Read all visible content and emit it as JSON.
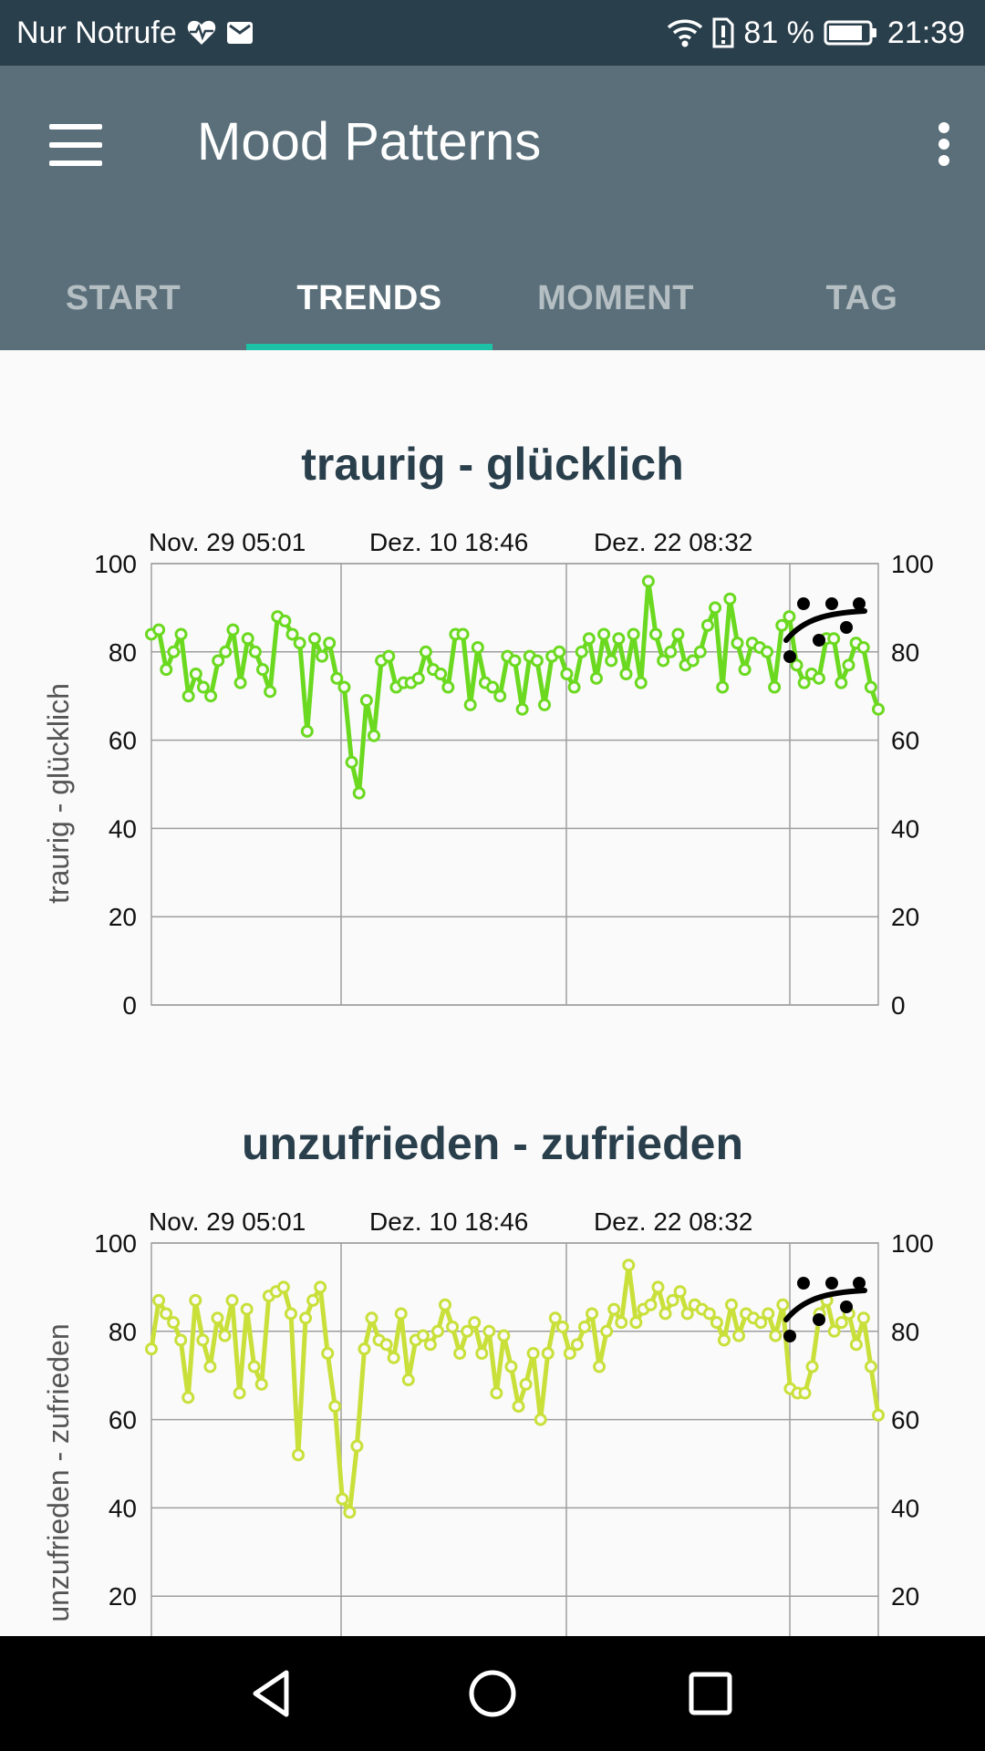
{
  "status_bar": {
    "carrier": "Nur Notrufe",
    "battery_percent": "81 %",
    "time": "21:39",
    "icons": [
      "heart-pulse-icon",
      "mail-icon",
      "wifi-icon",
      "sim-alert-icon",
      "battery-icon"
    ]
  },
  "app_bar": {
    "title": "Mood Patterns",
    "menu_icon": "hamburger-menu-icon",
    "overflow_icon": "more-vert-icon",
    "colors": {
      "background": "#5a6f79",
      "status_bar": "#2a3f4c",
      "tab_indicator": "#1dc2a6"
    }
  },
  "tabs": [
    {
      "label": "START",
      "active": false
    },
    {
      "label": "TRENDS",
      "active": true
    },
    {
      "label": "MOMENT",
      "active": false
    },
    {
      "label": "TAG",
      "active": false
    }
  ],
  "chart_data": [
    {
      "type": "line",
      "title": "traurig - glücklich",
      "ylabel": "traurig - glücklich",
      "date_labels": [
        "Nov. 29 05:01",
        "Dez. 10 18:46",
        "Dez. 22 08:32"
      ],
      "yticks": [
        "100",
        "80",
        "60",
        "40",
        "20",
        "0"
      ],
      "ylim": [
        0,
        100
      ],
      "color": "#6bd91f",
      "values": [
        84,
        85,
        76,
        80,
        84,
        70,
        75,
        72,
        70,
        78,
        80,
        85,
        73,
        83,
        80,
        76,
        71,
        88,
        87,
        84,
        82,
        62,
        83,
        79,
        82,
        74,
        72,
        55,
        48,
        69,
        61,
        78,
        79,
        72,
        73,
        73,
        74,
        80,
        76,
        75,
        72,
        84,
        84,
        68,
        81,
        73,
        72,
        70,
        79,
        78,
        67,
        79,
        78,
        68,
        79,
        80,
        75,
        72,
        80,
        83,
        74,
        84,
        78,
        83,
        75,
        84,
        73,
        96,
        84,
        78,
        80,
        84,
        77,
        78,
        80,
        86,
        90,
        72,
        92,
        82,
        76,
        82,
        81,
        80,
        72,
        86,
        88,
        77,
        73,
        75,
        74,
        83,
        83,
        73,
        77,
        82,
        81,
        72,
        67
      ]
    },
    {
      "type": "line",
      "title": "unzufrieden - zufrieden",
      "ylabel": "unzufrieden - zufrieden",
      "date_labels": [
        "Nov. 29 05:01",
        "Dez. 10 18:46",
        "Dez. 22 08:32"
      ],
      "yticks": [
        "100",
        "80",
        "60",
        "40",
        "20"
      ],
      "ylim": [
        0,
        100
      ],
      "color": "#c9e03a",
      "values": [
        76,
        87,
        84,
        82,
        78,
        65,
        87,
        78,
        72,
        83,
        79,
        87,
        66,
        85,
        72,
        68,
        88,
        89,
        90,
        84,
        52,
        83,
        87,
        90,
        75,
        63,
        42,
        39,
        54,
        76,
        83,
        78,
        77,
        74,
        84,
        69,
        78,
        79,
        77,
        80,
        86,
        81,
        75,
        80,
        82,
        75,
        80,
        66,
        79,
        72,
        63,
        68,
        75,
        60,
        75,
        83,
        81,
        75,
        77,
        81,
        84,
        72,
        80,
        85,
        82,
        95,
        82,
        85,
        86,
        90,
        84,
        87,
        89,
        84,
        86,
        85,
        84,
        82,
        78,
        86,
        79,
        84,
        83,
        82,
        84,
        79,
        86,
        67,
        66,
        66,
        72,
        84,
        87,
        80,
        82,
        84,
        77,
        83,
        72,
        61
      ]
    }
  ]
}
